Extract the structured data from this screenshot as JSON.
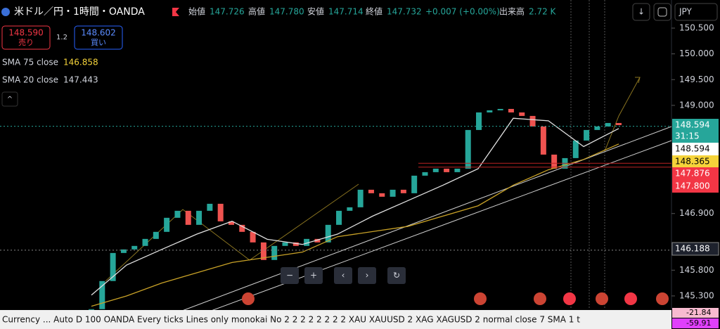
{
  "header": {
    "symbol": "米ドル／円・1時間・OANDA",
    "open_label": "始値",
    "open": "147.726",
    "high_label": "高値",
    "high": "147.780",
    "low_label": "安値",
    "low": "147.714",
    "close_label": "終値",
    "close": "147.732",
    "change": "+0.007 (+0.00%)",
    "volume_label": "出来高",
    "volume": "2.72 K",
    "currency": "JPY"
  },
  "trade": {
    "sell_price": "148.590",
    "sell_label": "売り",
    "spread": "1.2",
    "buy_price": "148.602",
    "buy_label": "買い"
  },
  "indicators": [
    {
      "name": "SMA 75 close",
      "value": "146.858"
    },
    {
      "name": "SMA 20 close",
      "value": "147.443"
    }
  ],
  "status_bar": "Currency ...  Auto D 100 OANDA Every ticks Lines only monokai No 2 2 2 2 2 2 2 2 XAU XAUUSD 2 XAG XAGUSD 2 normal close 7 SMA 1 t",
  "chart_data": {
    "type": "candlestick",
    "values": [
      145.043,
      145.589,
      146.134,
      146.203,
      146.271,
      146.407,
      146.544,
      146.817,
      146.953,
      146.68,
      146.953,
      147.089,
      146.748,
      146.68,
      146.544,
      146.339,
      145.998,
      146.271,
      146.339,
      146.271,
      146.407,
      146.339,
      146.68,
      146.953,
      147.021,
      147.362,
      147.294,
      147.226,
      147.362,
      147.294,
      147.635,
      147.703,
      147.771,
      147.703,
      147.771,
      148.522,
      148.863,
      148.904,
      148.931,
      148.863,
      148.795,
      148.59,
      148.044,
      147.771,
      147.976,
      148.317,
      148.522,
      148.59,
      148.658,
      148.617
    ],
    "up_color": "#26a69a",
    "down_color": "#ef5350",
    "series": [
      {
        "name": "SMA 20 close",
        "color": "#e0e0e0",
        "values": [
          145.316,
          145.9,
          146.203,
          146.5,
          146.75,
          146.4,
          146.3,
          146.5,
          146.85,
          147.15,
          147.45,
          147.77,
          148.75,
          148.7,
          148.2,
          148.55
        ]
      },
      {
        "name": "SMA 75 close",
        "color": "#c9a227",
        "values": [
          145.1,
          145.3,
          145.55,
          145.75,
          145.95,
          146.05,
          146.15,
          146.45,
          146.55,
          146.65,
          146.85,
          147.05,
          147.45,
          147.75,
          147.95,
          148.25
        ]
      }
    ],
    "ylim": [
      145.04,
      151.046
    ],
    "yticks": [
      {
        "value": 150.5,
        "label": "150.500"
      },
      {
        "value": 150,
        "label": "150.000"
      },
      {
        "value": 149.5,
        "label": "149.500"
      },
      {
        "value": 149,
        "label": "149.000"
      },
      {
        "value": 146.9,
        "label": "146.900"
      },
      {
        "value": 145.8,
        "label": "145.800"
      },
      {
        "value": 145.3,
        "label": "145.300"
      }
    ],
    "price_labels": [
      {
        "value": 148.594,
        "sub": "31:15",
        "color": "#26a69a"
      },
      {
        "value": 148.594,
        "color": "#ffffff"
      },
      {
        "value": 148.365,
        "color": "#f5d33a"
      },
      {
        "value": 147.876,
        "color": "#f23645"
      },
      {
        "value": {
          "value": 147.8,
          "label": "147.800"
        },
        "color": "#f23645"
      },
      {
        "value": 146.188,
        "color": "#1e222d"
      }
    ],
    "lower_pane_values": [
      -21.84,
      -59.91
    ]
  }
}
